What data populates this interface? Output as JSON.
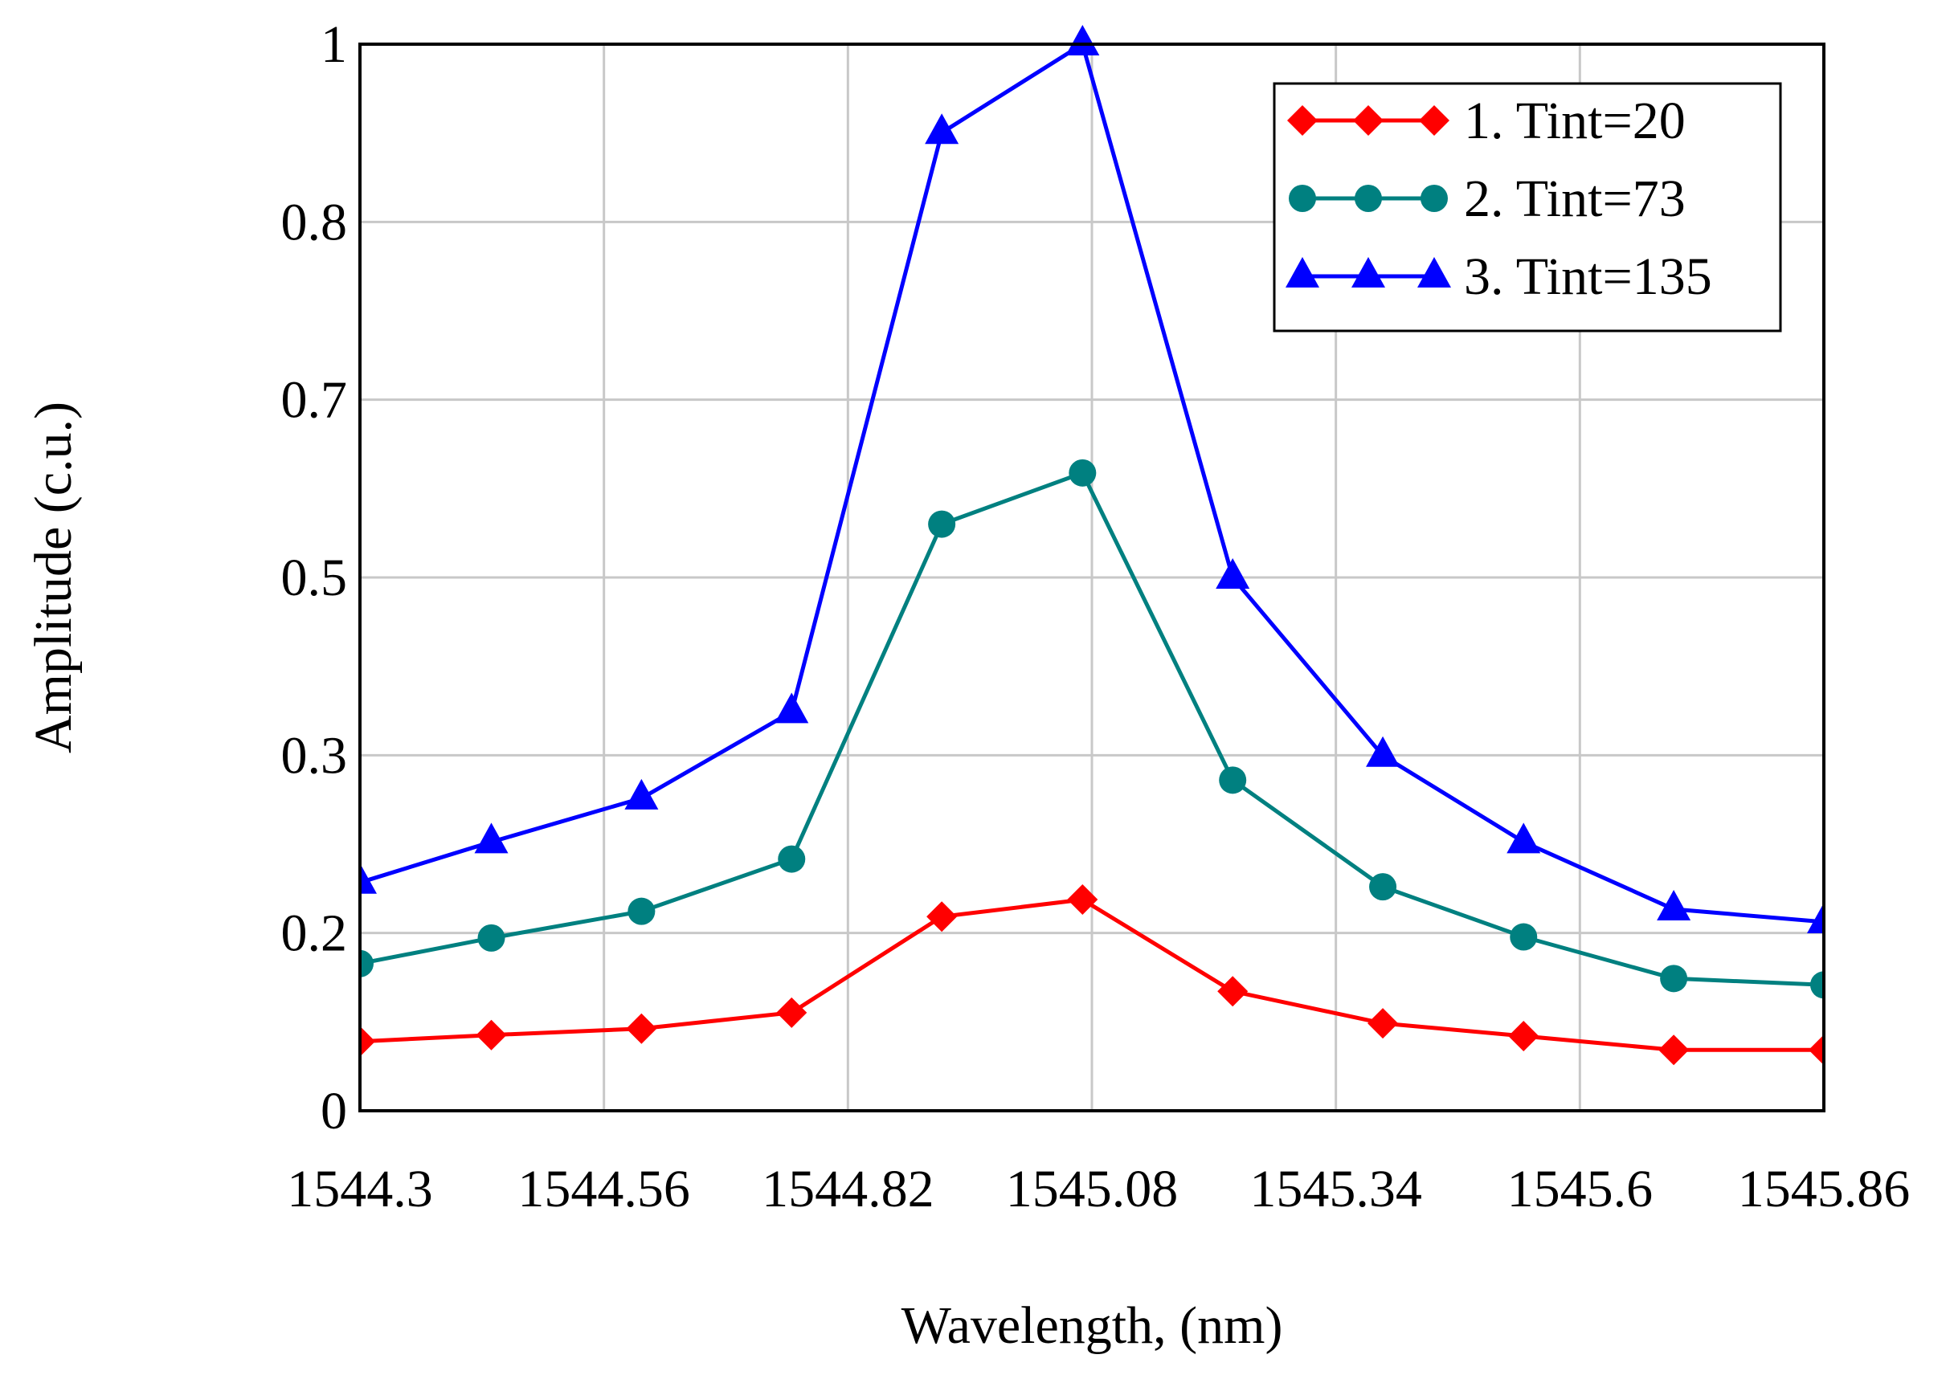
{
  "chart_data": {
    "type": "line",
    "title": "",
    "xlabel": "Wavelength, (nm)",
    "ylabel": "Amplitude (c.u.)",
    "xlim": [
      1544.3,
      1545.86
    ],
    "ylim": [
      0,
      1
    ],
    "grid": true,
    "legend_position": "top-right",
    "x_ticks": [
      "1544.3",
      "1544.56",
      "1544.82",
      "1545.08",
      "1545.34",
      "1545.6",
      "1545.86"
    ],
    "y_ticks": [
      {
        "value": 0,
        "label": "0"
      },
      {
        "value": 0.1666667,
        "label": "0.2"
      },
      {
        "value": 0.3333333,
        "label": "0.3"
      },
      {
        "value": 0.5,
        "label": "0.5"
      },
      {
        "value": 0.6666667,
        "label": "0.7"
      },
      {
        "value": 0.8333333,
        "label": "0.8"
      },
      {
        "value": 1,
        "label": "1"
      }
    ],
    "x": [
      1544.3,
      1544.44,
      1544.6,
      1544.76,
      1544.92,
      1545.07,
      1545.23,
      1545.39,
      1545.54,
      1545.7,
      1545.86
    ],
    "series": [
      {
        "name": "1. Tint=20",
        "color": "#ff0000",
        "marker": "diamond",
        "values": [
          0.065,
          0.071,
          0.077,
          0.092,
          0.182,
          0.198,
          0.112,
          0.082,
          0.07,
          0.057,
          0.057
        ]
      },
      {
        "name": "2. Tint=73",
        "color": "#008080",
        "marker": "circle",
        "values": [
          0.138,
          0.162,
          0.187,
          0.236,
          0.55,
          0.598,
          0.31,
          0.21,
          0.163,
          0.124,
          0.118
        ]
      },
      {
        "name": "3. Tint=135",
        "color": "#0000ff",
        "marker": "triangle",
        "values": [
          0.214,
          0.252,
          0.293,
          0.374,
          0.917,
          1.0,
          0.5,
          0.333,
          0.252,
          0.189,
          0.177
        ]
      }
    ]
  }
}
